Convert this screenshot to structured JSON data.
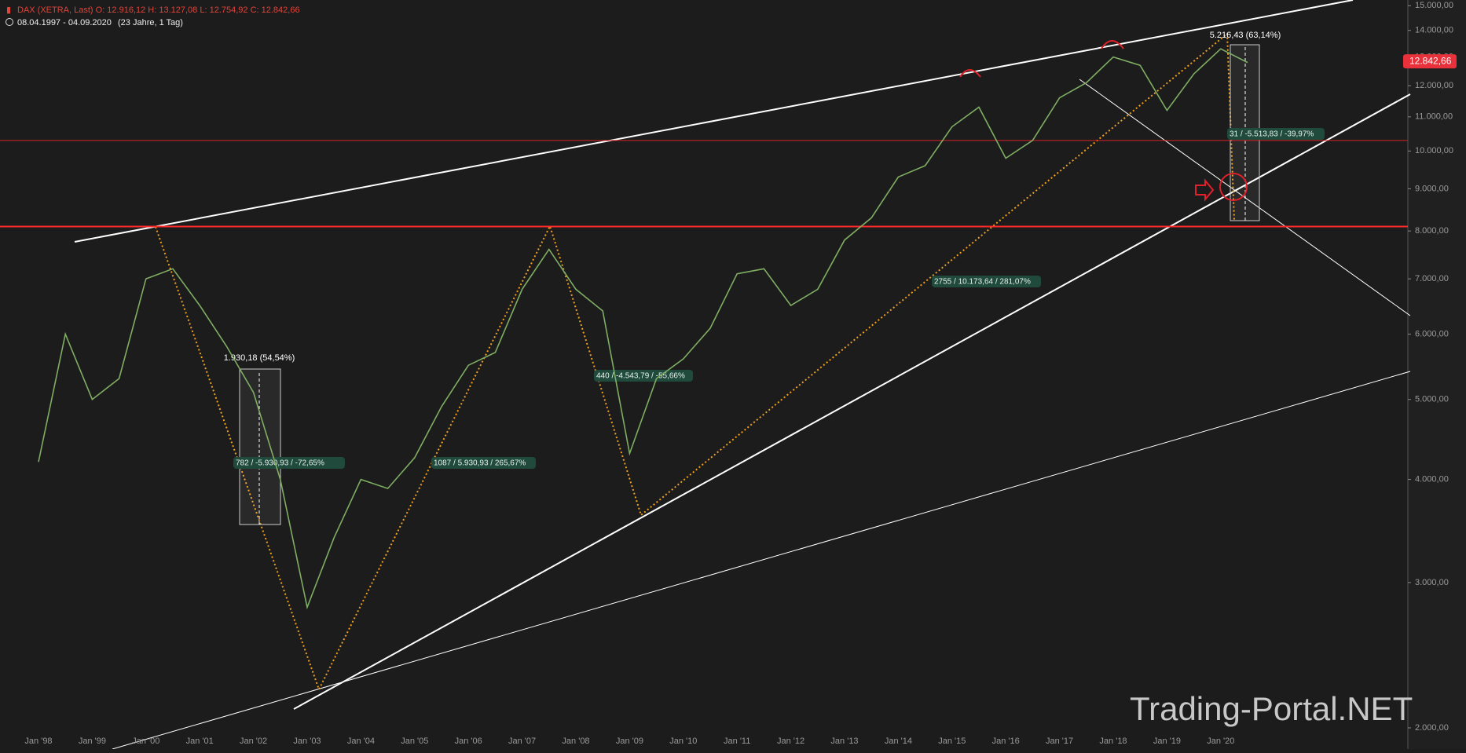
{
  "chart_data": {
    "type": "line",
    "header": "DAX (XETRA, Last)  O: 12.916,12  H: 13.127,08  L: 12.754,92  C: 12.842,66",
    "period": "08.04.1997 - 04.09.2020",
    "duration": "(23 Jahre, 1 Tag)",
    "categories": [
      "Jan '98",
      null,
      "Jan '99",
      null,
      "Jan '00",
      null,
      "Jan '01",
      null,
      "Jan '02",
      null,
      "Jan '03",
      null,
      "Jan '04",
      null,
      "Jan '05",
      null,
      "Jan '06",
      null,
      "Jan '07",
      null,
      "Jan '08",
      null,
      "Jan '09",
      null,
      "Jan '10",
      null,
      "Jan '11",
      null,
      "Jan '12",
      null,
      "Jan '13",
      null,
      "Jan '14",
      null,
      "Jan '15",
      null,
      "Jan '16",
      null,
      "Jan '17",
      null,
      "Jan '18",
      null,
      "Jan '19",
      null,
      "Jan '20",
      null
    ],
    "series": [
      {
        "name": "DAX",
        "color": "#7fae63",
        "values": [
          4200,
          6000,
          5000,
          5300,
          7000,
          7200,
          6500,
          5800,
          5100,
          4000,
          2800,
          3400,
          4000,
          3900,
          4250,
          4900,
          5500,
          5700,
          6800,
          7600,
          6800,
          6400,
          4300,
          5300,
          5600,
          6100,
          7100,
          7200,
          6500,
          6800,
          7800,
          8300,
          9300,
          9600,
          10700,
          11300,
          9800,
          10300,
          11600,
          12100,
          13000,
          12700,
          11200,
          12400,
          13300,
          12800
        ]
      }
    ],
    "log_scale": true,
    "grid": false,
    "ylim": [
      1885,
      15240
    ],
    "yticks": [
      {
        "value": 2000,
        "label": "2.000,00"
      },
      {
        "value": 3000,
        "label": "3.000,00"
      },
      {
        "value": 4000,
        "label": "4.000,00"
      },
      {
        "value": 5000,
        "label": "5.000,00"
      },
      {
        "value": 6000,
        "label": "6.000,00"
      },
      {
        "value": 7000,
        "label": "7.000,00"
      },
      {
        "value": 8000,
        "label": "8.000,00"
      },
      {
        "value": 9000,
        "label": "9.000,00"
      },
      {
        "value": 10000,
        "label": "10.000,00"
      },
      {
        "value": 11000,
        "label": "11.000,00"
      },
      {
        "value": 12000,
        "label": "12.000,00"
      },
      {
        "value": 13000,
        "label": "13.000,00"
      },
      {
        "value": 14000,
        "label": "14.000,00"
      },
      {
        "value": 15000,
        "label": "15.000,00"
      }
    ],
    "last_price": {
      "value": 12842.66,
      "label": "12.842,66"
    },
    "hlines": [
      {
        "value": 10300,
        "color": "#d9202a"
      },
      {
        "value": 8100,
        "color": "#ff2a2a"
      }
    ],
    "annotations": [
      "1.930,18 (54,54%)",
      "782 / -5.930,93 / -72,65%",
      "1087 / 5.930,93 / 265,67%",
      "440 / -4.543,79 / -55,66%",
      "2755 / 10.173,64 / 281,07%",
      "5.216,43 (63,14%)",
      "31 / -5.513,83 / -39,97%"
    ],
    "watermark": "Trading-Portal.NET"
  }
}
